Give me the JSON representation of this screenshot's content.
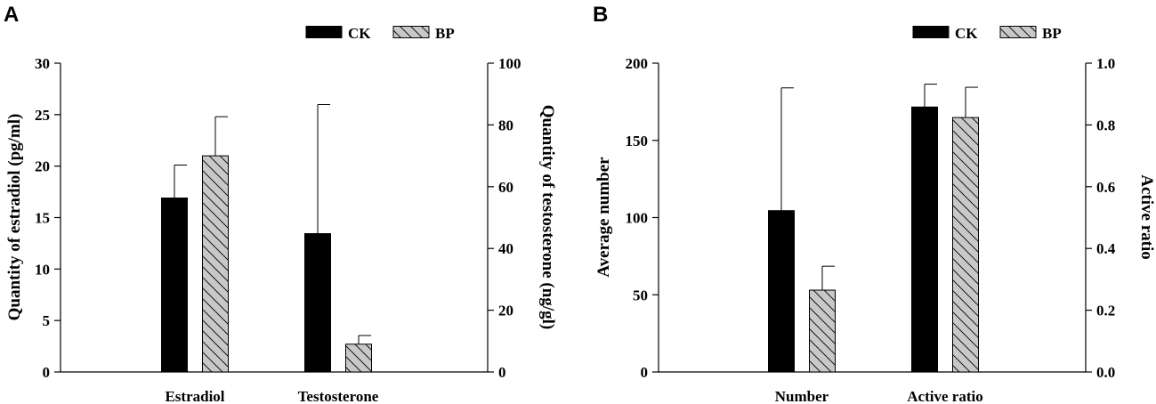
{
  "chart_data": [
    {
      "panel_label": "A",
      "type": "bar",
      "categories": [
        "Estradiol",
        "Testosterone"
      ],
      "legend": [
        "CK",
        "BP"
      ],
      "legend_position": "top-right",
      "left_axis": {
        "label": "Quantity of estradiol (pg/ml)",
        "ylim": [
          0,
          30
        ],
        "ticks": [
          "0",
          "5",
          "10",
          "15",
          "20",
          "25",
          "30"
        ]
      },
      "right_axis": {
        "label": "Quantity of testosterone (ng/gl)",
        "ylim": [
          0,
          100
        ],
        "ticks": [
          "0",
          "20",
          "40",
          "60",
          "80",
          "100"
        ]
      },
      "series": [
        {
          "name": "CK",
          "values": [
            16.9,
            44.8
          ],
          "errors": [
            3.2,
            41.8
          ],
          "axis": [
            "left",
            "right"
          ],
          "color": "#000000"
        },
        {
          "name": "BP",
          "values": [
            21.0,
            9.0
          ],
          "errors": [
            3.8,
            2.8
          ],
          "axis": [
            "left",
            "right"
          ],
          "color": "#c8c8c8"
        }
      ]
    },
    {
      "panel_label": "B",
      "type": "bar",
      "categories": [
        "Number",
        "Active ratio"
      ],
      "legend": [
        "CK",
        "BP"
      ],
      "legend_position": "top-right",
      "left_axis": {
        "label": "Average number",
        "ylim": [
          0,
          200
        ],
        "ticks": [
          "0",
          "50",
          "100",
          "150",
          "200"
        ]
      },
      "right_axis": {
        "label": "Active ratio",
        "ylim": [
          0,
          1.0
        ],
        "ticks": [
          "0.0",
          "0.2",
          "0.4",
          "0.6",
          "0.8",
          "1.0"
        ]
      },
      "series": [
        {
          "name": "CK",
          "values": [
            104.5,
            0.858
          ],
          "errors": [
            79.5,
            0.074
          ],
          "axis": [
            "left",
            "right"
          ],
          "color": "#000000"
        },
        {
          "name": "BP",
          "values": [
            53.0,
            0.824
          ],
          "errors": [
            15.5,
            0.098
          ],
          "axis": [
            "left",
            "right"
          ],
          "color": "#c8c8c8"
        }
      ]
    }
  ]
}
